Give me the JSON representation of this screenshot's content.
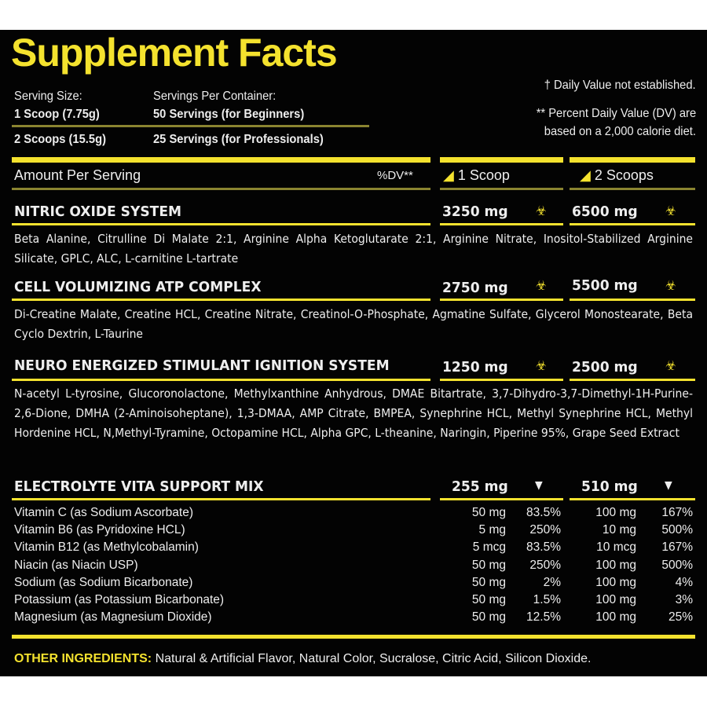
{
  "title": "Supplement Facts",
  "serving": {
    "size_label": "Serving Size:",
    "per_container_label": "Servings Per Container:",
    "size1": "1 Scoop (7.75g)",
    "servings1": "50 Servings (for Beginners)",
    "size2": "2 Scoops (15.5g)",
    "servings2": "25 Servings (for Professionals)"
  },
  "notes": {
    "dagger": "† Daily Value not established.",
    "dv1": "** Percent Daily Value (DV) are",
    "dv2": "based on a 2,000 calorie diet."
  },
  "header": {
    "amount": "Amount Per Serving",
    "dv": "%DV**",
    "col1": "1 Scoop",
    "col2": "2 Scoops"
  },
  "colors": {
    "accent": "#f4e22e",
    "background": "#030303"
  },
  "sections": [
    {
      "name": "NITRIC OXIDE SYSTEM",
      "v1": "3250 mg",
      "v2": "6500 mg",
      "icon": "biohazard-icon",
      "desc": "Beta Alanine, Citrulline Di Malate 2:1, Arginine Alpha Ketoglutarate 2:1, Arginine Nitrate, Inositol-Stabilized Arginine Silicate, GPLC, ALC, L-carnitine L-tartrate"
    },
    {
      "name": "CELL VOLUMIZING ATP COMPLEX",
      "v1": "2750 mg",
      "v2": "5500 mg",
      "icon": "biohazard-icon",
      "desc": "Di-Creatine Malate, Creatine HCL, Creatine Nitrate, Creatinol-O-Phosphate, Agmatine Sulfate, Glycerol Monostearate, Beta Cyclo Dextrin, L-Taurine"
    },
    {
      "name": "NEURO ENERGIZED STIMULANT IGNITION SYSTEM",
      "v1": "1250 mg",
      "v2": "2500 mg",
      "icon": "biohazard-icon",
      "desc": "N-acetyl L-tyrosine, Glucoronolactone, Methylxanthine Anhydrous, DMAE Bitartrate, 3,7-Dihydro-3,7-Dimethyl-1H-Purine-2,6-Dione, DMHA (2-Aminoisoheptane), 1,3-DMAA, AMP Citrate, BMPEA, Synephrine HCL, Methyl Synephrine HCL, Methyl Hordenine HCL, N,Methyl-Tyramine, Octopamine HCL, Alpha GPC, L-theanine, Naringin, Piperine 95%, Grape Seed Extract"
    },
    {
      "name": "ELECTROLYTE VITA SUPPORT MIX",
      "v1": "255 mg",
      "v2": "510 mg",
      "icon": "triangle-down-icon"
    }
  ],
  "vitamins": [
    {
      "name": "Vitamin C (as Sodium Ascorbate)",
      "a1": "50 mg",
      "p1": "83.5%",
      "a2": "100 mg",
      "p2": "167%"
    },
    {
      "name": "Vitamin B6 (as Pyridoxine HCL)",
      "a1": "5 mg",
      "p1": "250%",
      "a2": "10 mg",
      "p2": "500%"
    },
    {
      "name": "Vitamin B12 (as Methylcobalamin)",
      "a1": "5 mcg",
      "p1": "83.5%",
      "a2": "10 mcg",
      "p2": "167%"
    },
    {
      "name": "Niacin (as Niacin USP)",
      "a1": "50 mg",
      "p1": "250%",
      "a2": "100 mg",
      "p2": "500%"
    },
    {
      "name": "Sodium (as Sodium Bicarbonate)",
      "a1": "50 mg",
      "p1": "2%",
      "a2": "100 mg",
      "p2": "4%"
    },
    {
      "name": "Potassium (as Potassium Bicarbonate)",
      "a1": "50 mg",
      "p1": "1.5%",
      "a2": "100 mg",
      "p2": "3%"
    },
    {
      "name": "Magnesium (as Magnesium Dioxide)",
      "a1": "50 mg",
      "p1": "12.5%",
      "a2": "100 mg",
      "p2": "25%"
    }
  ],
  "other": {
    "label": "OTHER INGREDIENTS:",
    "text": " Natural & Artificial Flavor, Natural Color, Sucralose, Citric Acid, Silicon Dioxide."
  }
}
